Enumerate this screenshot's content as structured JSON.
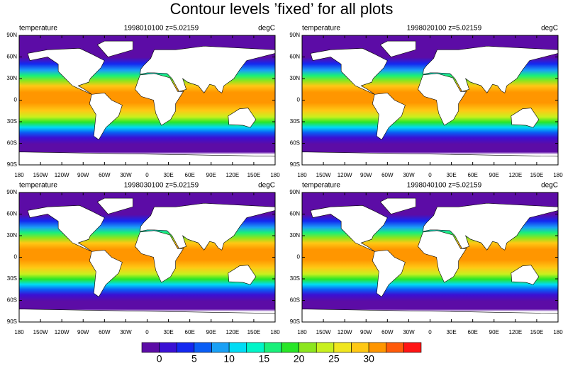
{
  "title": "Contour levels ’fixed’ for all plots",
  "panels": [
    {
      "left": "temperature",
      "center": "1998010100  z=5.02159",
      "right": "degC"
    },
    {
      "left": "temperature",
      "center": "1998020100  z=5.02159",
      "right": "degC"
    },
    {
      "left": "temperature",
      "center": "1998030100  z=5.02159",
      "right": "degC"
    },
    {
      "left": "temperature",
      "center": "1998040100  z=5.02159",
      "right": "degC"
    }
  ],
  "lat_labels": [
    "90N",
    "60N",
    "30N",
    "0",
    "30S",
    "60S",
    "90S"
  ],
  "lon_labels": [
    "180",
    "150W",
    "120W",
    "90W",
    "60W",
    "30W",
    "0",
    "30E",
    "60E",
    "90E",
    "120E",
    "150E",
    "180"
  ],
  "colorbar": {
    "range": [
      -2.5,
      37.5
    ],
    "ticks": [
      0,
      5,
      10,
      15,
      20,
      25,
      30
    ],
    "colors": [
      "#5c0ca6",
      "#3a10d4",
      "#1428f0",
      "#0a5ef5",
      "#1aa0f5",
      "#00dcf5",
      "#00f5c8",
      "#19f07a",
      "#28e628",
      "#8ce61e",
      "#c8f01e",
      "#f0e61e",
      "#ffc814",
      "#ff9600",
      "#ff5a0a",
      "#ff1414"
    ]
  }
}
